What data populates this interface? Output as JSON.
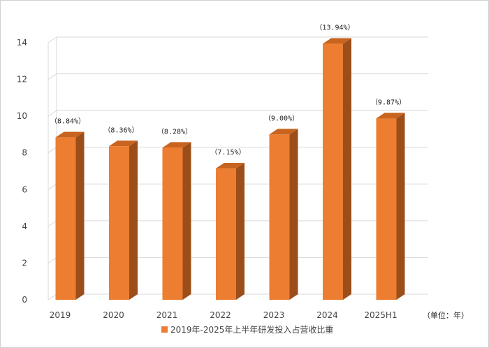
{
  "chart_data": {
    "type": "bar",
    "categories": [
      "2019",
      "2020",
      "2021",
      "2022",
      "2023",
      "2024",
      "2025H1"
    ],
    "values": [
      8.84,
      8.36,
      8.28,
      7.15,
      9.0,
      13.94,
      9.87
    ],
    "data_labels": [
      "（8.84%）",
      "（8.36%）",
      "（8.28%）",
      "（7.15%）",
      "（9.00%）",
      "（13.94%）",
      "（9.87%）"
    ],
    "yticks": [
      "0",
      "2",
      "4",
      "6",
      "8",
      "10",
      "12",
      "14"
    ],
    "ylim": [
      0,
      14
    ],
    "unit_label": "（单位：年）",
    "legend": "2019年-2025年上半年研发投入占营收比重",
    "grid": true,
    "legend_position": "bottom",
    "colors": {
      "bar_front": "#ed7d31",
      "bar_side": "#9c4e1a",
      "bar_top": "#c8641f",
      "grid": "#d9d9d9"
    }
  }
}
